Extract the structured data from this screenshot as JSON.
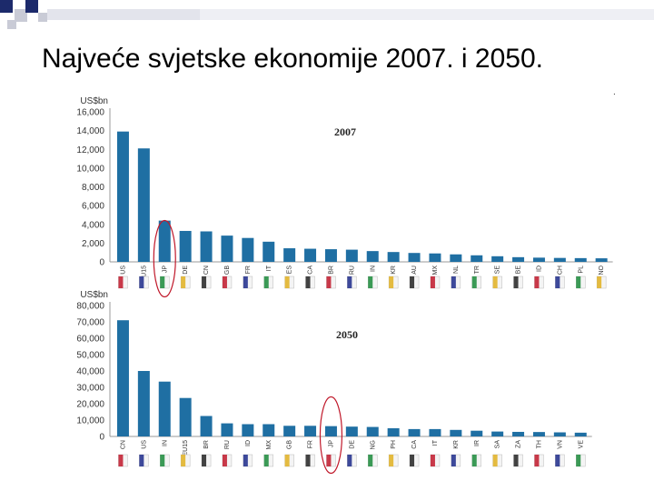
{
  "slide": {
    "title": "Najveće svjetske ekonomije 2007. i 2050.",
    "stray_mark": "."
  },
  "colors": {
    "bar": "#1f6fa3",
    "highlight": "#c0182a",
    "deco_navy": "#1c2a6b",
    "deco_gray": "#c9cbd6"
  },
  "chart_data": [
    {
      "type": "bar",
      "title": "2007",
      "ylabel": "US$bn",
      "ylim": [
        0,
        16000
      ],
      "yticks": [
        "0",
        "2,000",
        "4,000",
        "6,000",
        "8,000",
        "10,000",
        "12,000",
        "14,000",
        "16,000"
      ],
      "ytick_values": [
        0,
        2000,
        4000,
        6000,
        8000,
        10000,
        12000,
        14000,
        16000
      ],
      "categories": [
        "US",
        "EU15",
        "JP",
        "DE",
        "CN",
        "GB",
        "FR",
        "IT",
        "ES",
        "CA",
        "BR",
        "RU",
        "IN",
        "KR",
        "AU",
        "MX",
        "NL",
        "TR",
        "SE",
        "BE",
        "ID",
        "CH",
        "PL",
        "NO"
      ],
      "values": [
        13900,
        12100,
        4400,
        3300,
        3250,
        2800,
        2550,
        2150,
        1450,
        1400,
        1350,
        1300,
        1150,
        1050,
        950,
        900,
        800,
        700,
        600,
        500,
        450,
        420,
        400,
        380
      ],
      "highlight": "JP",
      "grid": false
    },
    {
      "type": "bar",
      "title": "2050",
      "ylabel": "US$bn",
      "ylim": [
        0,
        80000
      ],
      "yticks": [
        "0",
        "10,000",
        "20,000",
        "30,000",
        "40,000",
        "50,000",
        "60,000",
        "70,000",
        "80,000"
      ],
      "ytick_values": [
        0,
        10000,
        20000,
        30000,
        40000,
        50000,
        60000,
        70000,
        80000
      ],
      "categories": [
        "CN",
        "US",
        "IN",
        "EU15",
        "BR",
        "RU",
        "ID",
        "MX",
        "GB",
        "FR",
        "JP",
        "DE",
        "NG",
        "PH",
        "CA",
        "IT",
        "KR",
        "IR",
        "SA",
        "ZA",
        "TH",
        "VN",
        "VE"
      ],
      "values": [
        71000,
        40000,
        33500,
        23500,
        12500,
        8000,
        7500,
        7500,
        6500,
        6500,
        6300,
        6000,
        5800,
        5000,
        4500,
        4500,
        4000,
        3500,
        3000,
        2800,
        2700,
        2500,
        2300
      ],
      "highlight": "JP",
      "grid": false
    }
  ]
}
